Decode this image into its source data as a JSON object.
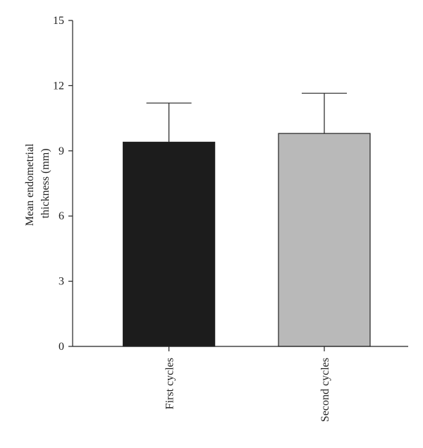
{
  "chart_data": {
    "type": "bar",
    "title": "",
    "xlabel": "",
    "ylabel_lines": [
      "Mean endometrial",
      "thickness (mm)"
    ],
    "categories": [
      "First cycles",
      "Second cycles"
    ],
    "values": [
      9.4,
      9.8
    ],
    "error_upper": [
      1.8,
      1.85
    ],
    "bar_colors": [
      "#1c1c1c",
      "#b9b9b9"
    ],
    "ylim": [
      0,
      15
    ],
    "yticks": [
      0,
      3,
      6,
      9,
      12,
      15
    ],
    "grid": false,
    "legend": false
  }
}
